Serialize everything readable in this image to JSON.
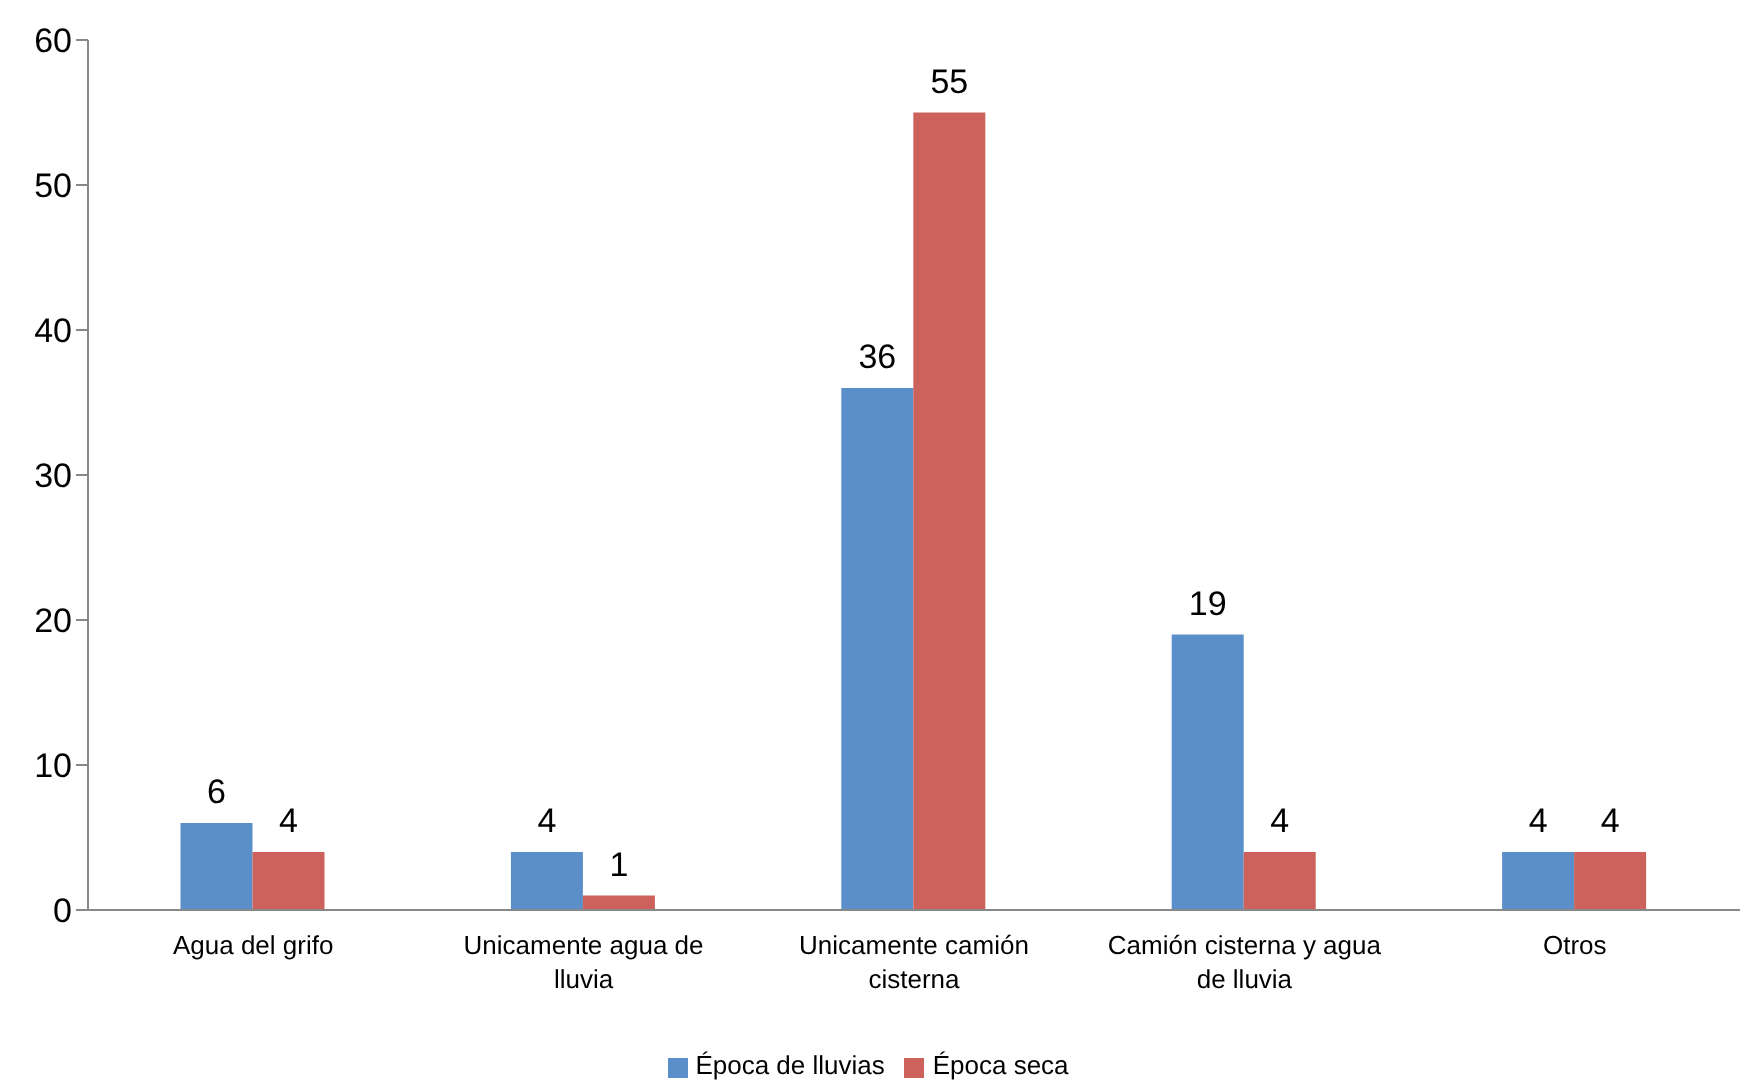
{
  "chart_data": {
    "type": "bar",
    "categories": [
      "Agua del grifo",
      "Unicamente agua de lluvia",
      "Unicamente camión cisterna",
      "Camión cisterna y agua de lluvia",
      "Otros"
    ],
    "series": [
      {
        "name": "Época de lluvias",
        "color": "#5b8fc9",
        "values": [
          6,
          4,
          36,
          19,
          4
        ]
      },
      {
        "name": "Época seca",
        "color": "#cd625c",
        "values": [
          4,
          1,
          55,
          4,
          4
        ]
      }
    ],
    "ylim": [
      0,
      60
    ],
    "yticks": [
      0,
      10,
      20,
      30,
      40,
      50,
      60
    ],
    "grid": false,
    "legend": "bottom",
    "data_labels": true
  }
}
